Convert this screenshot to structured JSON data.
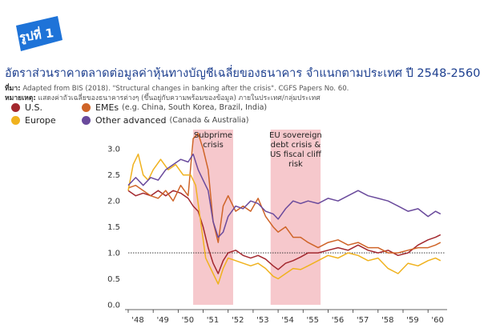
{
  "badge": {
    "text": "รูปที่ 1",
    "color": "#1e73d8"
  },
  "title": "อัตราส่วนราคาตลาดต่อมูลค่าหุ้นทางบัญชีเฉลี่ยของธนาคาร จำแนกตามประเทศ ปี 2548-2560",
  "source_label": "ที่มา:",
  "source_text": "Adapted from BIS (2018). \"Structural changes in banking after the crisis\". CGFS Papers No. 60.",
  "note_label": "หมายเหตุ:",
  "note_text": "แสดงค่าถัวเฉลี่ยของธนาคารต่างๆ (ขึ้นอยู่กับความพร้อมของข้อมูล) ภายในประเทศ/กลุ่มประเทศ",
  "chart_data": {
    "type": "line",
    "x_ticks": [
      "'48",
      "'49",
      "'50",
      "'51",
      "'52",
      "'53",
      "'54",
      "'55",
      "'56",
      "'57",
      "'58",
      "'59",
      "'60"
    ],
    "y_ticks": [
      "0.0",
      "0.5",
      "1.0",
      "1.5",
      "2.0",
      "2.5",
      "3.0"
    ],
    "ylim": [
      0,
      3.25
    ],
    "xlim": [
      2548,
      2560.7
    ],
    "reference_line": 1.0,
    "shaded_periods": [
      {
        "label": "Subprime crisis",
        "lines": [
          "Subprime",
          "crisis"
        ],
        "start": 2550.6,
        "end": 2552.2
      },
      {
        "label": "EU sovereign debt crisis & US fiscal cliff risk",
        "lines": [
          "EU sovereign",
          "debt crisis &",
          "US fiscal cliff",
          "risk"
        ],
        "start": 2553.7,
        "end": 2555.7
      }
    ],
    "series": [
      {
        "name": "U.S.",
        "color": "#a3282e",
        "points": [
          [
            2548,
            2.2
          ],
          [
            2548.3,
            2.1
          ],
          [
            2548.6,
            2.15
          ],
          [
            2548.9,
            2.1
          ],
          [
            2549.2,
            2.2
          ],
          [
            2549.5,
            2.1
          ],
          [
            2549.8,
            2.2
          ],
          [
            2550.1,
            2.15
          ],
          [
            2550.4,
            2.05
          ],
          [
            2550.6,
            1.9
          ],
          [
            2550.8,
            1.8
          ],
          [
            2551.0,
            1.5
          ],
          [
            2551.2,
            1.1
          ],
          [
            2551.4,
            0.8
          ],
          [
            2551.6,
            0.6
          ],
          [
            2551.8,
            0.85
          ],
          [
            2552.0,
            1.0
          ],
          [
            2552.3,
            1.05
          ],
          [
            2552.6,
            0.95
          ],
          [
            2552.9,
            0.9
          ],
          [
            2553.2,
            0.95
          ],
          [
            2553.5,
            0.88
          ],
          [
            2553.8,
            0.75
          ],
          [
            2554.0,
            0.68
          ],
          [
            2554.3,
            0.8
          ],
          [
            2554.6,
            0.85
          ],
          [
            2554.9,
            0.92
          ],
          [
            2555.2,
            1.0
          ],
          [
            2555.6,
            1.0
          ],
          [
            2556.0,
            1.05
          ],
          [
            2556.4,
            1.1
          ],
          [
            2556.8,
            1.05
          ],
          [
            2557.2,
            1.15
          ],
          [
            2557.6,
            1.05
          ],
          [
            2558.0,
            1.0
          ],
          [
            2558.4,
            1.05
          ],
          [
            2558.8,
            0.95
          ],
          [
            2559.2,
            1.0
          ],
          [
            2559.6,
            1.15
          ],
          [
            2560.0,
            1.25
          ],
          [
            2560.3,
            1.3
          ],
          [
            2560.5,
            1.35
          ]
        ]
      },
      {
        "name": "EMEs",
        "sublabel": "(e.g. China, South Korea, Brazil, India)",
        "color": "#cf6428",
        "points": [
          [
            2548,
            2.25
          ],
          [
            2548.3,
            2.3
          ],
          [
            2548.6,
            2.2
          ],
          [
            2548.9,
            2.1
          ],
          [
            2549.2,
            2.05
          ],
          [
            2549.5,
            2.2
          ],
          [
            2549.8,
            2.0
          ],
          [
            2550.1,
            2.3
          ],
          [
            2550.4,
            2.1
          ],
          [
            2550.6,
            3.2
          ],
          [
            2550.8,
            3.3
          ],
          [
            2551.0,
            3.0
          ],
          [
            2551.2,
            2.6
          ],
          [
            2551.4,
            1.6
          ],
          [
            2551.6,
            1.2
          ],
          [
            2551.8,
            1.9
          ],
          [
            2552.0,
            2.1
          ],
          [
            2552.3,
            1.8
          ],
          [
            2552.6,
            1.9
          ],
          [
            2552.9,
            1.8
          ],
          [
            2553.2,
            2.05
          ],
          [
            2553.5,
            1.7
          ],
          [
            2553.8,
            1.5
          ],
          [
            2554.0,
            1.4
          ],
          [
            2554.3,
            1.5
          ],
          [
            2554.6,
            1.3
          ],
          [
            2554.9,
            1.3
          ],
          [
            2555.2,
            1.2
          ],
          [
            2555.6,
            1.1
          ],
          [
            2556.0,
            1.2
          ],
          [
            2556.4,
            1.25
          ],
          [
            2556.8,
            1.15
          ],
          [
            2557.2,
            1.2
          ],
          [
            2557.6,
            1.1
          ],
          [
            2558.0,
            1.1
          ],
          [
            2558.4,
            1.0
          ],
          [
            2558.8,
            1.0
          ],
          [
            2559.2,
            1.05
          ],
          [
            2559.6,
            1.1
          ],
          [
            2560.0,
            1.1
          ],
          [
            2560.3,
            1.15
          ],
          [
            2560.5,
            1.2
          ]
        ]
      },
      {
        "name": "Europe",
        "color": "#f0b21e",
        "points": [
          [
            2548,
            2.2
          ],
          [
            2548.2,
            2.7
          ],
          [
            2548.4,
            2.9
          ],
          [
            2548.6,
            2.5
          ],
          [
            2548.8,
            2.4
          ],
          [
            2549.0,
            2.6
          ],
          [
            2549.3,
            2.8
          ],
          [
            2549.6,
            2.6
          ],
          [
            2549.9,
            2.7
          ],
          [
            2550.2,
            2.5
          ],
          [
            2550.5,
            2.5
          ],
          [
            2550.7,
            2.3
          ],
          [
            2550.9,
            1.6
          ],
          [
            2551.1,
            0.9
          ],
          [
            2551.4,
            0.6
          ],
          [
            2551.6,
            0.4
          ],
          [
            2551.8,
            0.7
          ],
          [
            2552.0,
            0.9
          ],
          [
            2552.3,
            0.85
          ],
          [
            2552.6,
            0.8
          ],
          [
            2552.9,
            0.75
          ],
          [
            2553.2,
            0.8
          ],
          [
            2553.5,
            0.7
          ],
          [
            2553.8,
            0.55
          ],
          [
            2554.0,
            0.5
          ],
          [
            2554.3,
            0.6
          ],
          [
            2554.6,
            0.7
          ],
          [
            2554.9,
            0.68
          ],
          [
            2555.2,
            0.75
          ],
          [
            2555.6,
            0.85
          ],
          [
            2556.0,
            0.95
          ],
          [
            2556.4,
            0.9
          ],
          [
            2556.8,
            1.0
          ],
          [
            2557.2,
            0.95
          ],
          [
            2557.6,
            0.85
          ],
          [
            2558.0,
            0.9
          ],
          [
            2558.4,
            0.7
          ],
          [
            2558.8,
            0.6
          ],
          [
            2559.2,
            0.8
          ],
          [
            2559.6,
            0.75
          ],
          [
            2560.0,
            0.85
          ],
          [
            2560.3,
            0.9
          ],
          [
            2560.5,
            0.85
          ]
        ]
      },
      {
        "name": "Other advanced",
        "sublabel": "(Canada & Australia)",
        "color": "#6a4a9c",
        "points": [
          [
            2548,
            2.3
          ],
          [
            2548.3,
            2.45
          ],
          [
            2548.6,
            2.3
          ],
          [
            2548.9,
            2.45
          ],
          [
            2549.2,
            2.4
          ],
          [
            2549.5,
            2.6
          ],
          [
            2549.8,
            2.7
          ],
          [
            2550.1,
            2.8
          ],
          [
            2550.4,
            2.75
          ],
          [
            2550.6,
            2.9
          ],
          [
            2550.8,
            2.6
          ],
          [
            2551.0,
            2.4
          ],
          [
            2551.2,
            2.2
          ],
          [
            2551.4,
            1.6
          ],
          [
            2551.6,
            1.3
          ],
          [
            2551.8,
            1.4
          ],
          [
            2552.0,
            1.7
          ],
          [
            2552.3,
            1.9
          ],
          [
            2552.6,
            1.85
          ],
          [
            2552.9,
            2.0
          ],
          [
            2553.2,
            1.95
          ],
          [
            2553.5,
            1.8
          ],
          [
            2553.8,
            1.75
          ],
          [
            2554.0,
            1.65
          ],
          [
            2554.3,
            1.85
          ],
          [
            2554.6,
            2.0
          ],
          [
            2554.9,
            1.95
          ],
          [
            2555.2,
            2.0
          ],
          [
            2555.6,
            1.95
          ],
          [
            2556.0,
            2.05
          ],
          [
            2556.4,
            2.0
          ],
          [
            2556.8,
            2.1
          ],
          [
            2557.2,
            2.2
          ],
          [
            2557.6,
            2.1
          ],
          [
            2558.0,
            2.05
          ],
          [
            2558.4,
            2.0
          ],
          [
            2558.8,
            1.9
          ],
          [
            2559.2,
            1.8
          ],
          [
            2559.6,
            1.85
          ],
          [
            2560.0,
            1.7
          ],
          [
            2560.3,
            1.8
          ],
          [
            2560.5,
            1.75
          ]
        ]
      }
    ]
  }
}
